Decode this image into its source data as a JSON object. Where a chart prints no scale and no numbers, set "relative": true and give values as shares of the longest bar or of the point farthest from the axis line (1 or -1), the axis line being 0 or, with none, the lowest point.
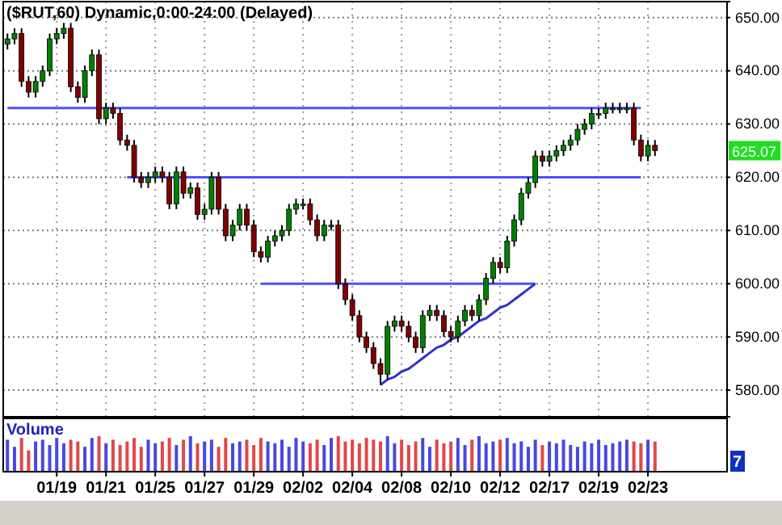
{
  "chart_data": [
    {
      "type": "candlestick",
      "title": "($RUT,60) Dynamic,0:00-24:00 (Delayed)",
      "categories": [
        null,
        null,
        null,
        null,
        null,
        null,
        null,
        null,
        null,
        null,
        null,
        null,
        null,
        null,
        null,
        null,
        null,
        null,
        null,
        null,
        null,
        null,
        null,
        null,
        null,
        null,
        null,
        null,
        null,
        null,
        null,
        null,
        null,
        null,
        null,
        null,
        null,
        null,
        null,
        null,
        null,
        null,
        null,
        null,
        null,
        null,
        null,
        null,
        null,
        null,
        null,
        null,
        null,
        null,
        null,
        null,
        null,
        null,
        null,
        null,
        null,
        null,
        null,
        null,
        null,
        null,
        null,
        null,
        null,
        null,
        null,
        null,
        null,
        null,
        null,
        null,
        null,
        null,
        null,
        null,
        null,
        null,
        null,
        null,
        null,
        null,
        null,
        null,
        null,
        null,
        null,
        null,
        null
      ],
      "ohlc": [
        [
          645,
          647,
          644,
          646
        ],
        [
          646,
          648,
          645,
          647
        ],
        [
          647,
          648,
          637,
          638
        ],
        [
          638,
          639,
          635,
          636
        ],
        [
          636,
          639,
          635,
          638
        ],
        [
          638,
          641,
          637,
          640
        ],
        [
          640,
          647,
          639,
          646
        ],
        [
          646,
          648,
          645,
          647
        ],
        [
          647,
          649,
          646,
          648
        ],
        [
          648,
          649,
          636,
          637
        ],
        [
          637,
          638,
          634,
          635
        ],
        [
          635,
          641,
          634,
          640
        ],
        [
          640,
          644,
          639,
          643
        ],
        [
          643,
          644,
          630,
          631
        ],
        [
          631,
          634,
          630,
          633
        ],
        [
          633,
          634,
          631,
          632
        ],
        [
          632,
          633,
          626,
          627
        ],
        [
          627,
          628,
          625,
          626
        ],
        [
          626,
          627,
          619,
          620
        ],
        [
          620,
          621,
          618,
          619
        ],
        [
          619,
          621,
          618,
          620
        ],
        [
          620,
          622,
          619,
          621
        ],
        [
          621,
          622,
          619,
          620
        ],
        [
          620,
          621,
          614,
          615
        ],
        [
          615,
          622,
          614,
          621
        ],
        [
          621,
          622,
          616,
          617
        ],
        [
          617,
          619,
          616,
          618
        ],
        [
          618,
          619,
          612,
          613
        ],
        [
          613,
          615,
          612,
          614
        ],
        [
          614,
          621,
          613,
          620
        ],
        [
          620,
          621,
          613,
          614
        ],
        [
          614,
          615,
          608,
          609
        ],
        [
          609,
          612,
          608,
          611
        ],
        [
          611,
          615,
          610,
          614
        ],
        [
          614,
          615,
          610,
          611
        ],
        [
          611,
          612,
          605,
          606
        ],
        [
          606,
          607,
          604,
          605
        ],
        [
          605,
          609,
          604,
          608
        ],
        [
          608,
          610,
          607,
          609
        ],
        [
          609,
          611,
          608,
          610
        ],
        [
          610,
          615,
          609,
          614
        ],
        [
          614,
          616,
          613,
          615
        ],
        [
          615,
          616,
          614,
          615
        ],
        [
          615,
          616,
          611,
          612
        ],
        [
          612,
          613,
          608,
          609
        ],
        [
          609,
          612,
          608,
          611
        ],
        [
          611,
          612,
          610,
          611
        ],
        [
          611,
          612,
          599,
          600
        ],
        [
          600,
          601,
          596,
          597
        ],
        [
          597,
          598,
          593,
          594
        ],
        [
          594,
          595,
          589,
          590
        ],
        [
          590,
          591,
          587,
          588
        ],
        [
          588,
          589,
          584,
          585
        ],
        [
          585,
          586,
          581,
          583
        ],
        [
          583,
          593,
          582,
          592
        ],
        [
          592,
          594,
          591,
          593
        ],
        [
          593,
          594,
          591,
          592
        ],
        [
          592,
          593,
          589,
          590
        ],
        [
          590,
          591,
          587,
          588
        ],
        [
          588,
          595,
          587,
          594
        ],
        [
          594,
          596,
          593,
          595
        ],
        [
          595,
          596,
          593,
          594
        ],
        [
          594,
          595,
          590,
          591
        ],
        [
          591,
          592,
          589,
          590
        ],
        [
          590,
          594,
          589,
          593
        ],
        [
          593,
          596,
          592,
          595
        ],
        [
          595,
          596,
          593,
          594
        ],
        [
          594,
          598,
          593,
          597
        ],
        [
          597,
          602,
          596,
          601
        ],
        [
          601,
          605,
          600,
          604
        ],
        [
          604,
          605,
          602,
          603
        ],
        [
          603,
          609,
          602,
          608
        ],
        [
          608,
          613,
          607,
          612
        ],
        [
          612,
          618,
          611,
          617
        ],
        [
          617,
          620,
          616,
          619
        ],
        [
          619,
          625,
          618,
          624
        ],
        [
          624,
          625,
          622,
          623
        ],
        [
          623,
          625,
          622,
          624
        ],
        [
          624,
          626,
          623,
          625
        ],
        [
          625,
          627,
          624,
          626
        ],
        [
          626,
          628,
          625,
          627
        ],
        [
          627,
          630,
          626,
          629
        ],
        [
          629,
          631,
          628,
          630
        ],
        [
          630,
          633,
          629,
          632
        ],
        [
          632,
          633,
          631,
          632
        ],
        [
          632,
          634,
          631,
          633
        ],
        [
          633,
          634,
          632,
          633
        ],
        [
          633,
          634,
          632,
          633
        ],
        [
          633,
          634,
          632,
          633
        ],
        [
          633,
          634,
          626,
          627
        ],
        [
          627,
          628,
          623,
          624
        ],
        [
          624,
          627,
          623,
          626
        ],
        [
          626,
          627,
          624,
          625
        ]
      ],
      "colors": [
        "#008000",
        "#008000",
        "#800000",
        "#800000",
        "#008000",
        "#008000",
        "#008000",
        "#008000",
        "#008000",
        "#800000",
        "#800000",
        "#008000",
        "#008000",
        "#800000",
        "#008000",
        "#800000",
        "#800000",
        "#800000",
        "#800000",
        "#800000",
        "#008000",
        "#008000",
        "#800000",
        "#800000",
        "#008000",
        "#800000",
        "#008000",
        "#800000",
        "#008000",
        "#008000",
        "#800000",
        "#800000",
        "#008000",
        "#008000",
        "#800000",
        "#800000",
        "#800000",
        "#008000",
        "#008000",
        "#008000",
        "#008000",
        "#008000",
        "#008000",
        "#800000",
        "#800000",
        "#008000",
        "#008000",
        "#800000",
        "#800000",
        "#800000",
        "#800000",
        "#800000",
        "#800000",
        "#800000",
        "#008000",
        "#008000",
        "#800000",
        "#800000",
        "#800000",
        "#008000",
        "#008000",
        "#800000",
        "#800000",
        "#800000",
        "#008000",
        "#008000",
        "#800000",
        "#008000",
        "#008000",
        "#008000",
        "#800000",
        "#008000",
        "#008000",
        "#008000",
        "#008000",
        "#008000",
        "#800000",
        "#008000",
        "#008000",
        "#008000",
        "#008000",
        "#008000",
        "#008000",
        "#008000",
        "#008000",
        "#008000",
        "#008000",
        "#008000",
        "#008000",
        "#800000",
        "#800000",
        "#008000",
        "#800000"
      ],
      "series": [
        {
          "type": "line",
          "color": "#5050ff",
          "values": [
            633,
            633,
            633,
            633,
            633,
            633,
            633,
            633,
            633,
            633,
            633,
            633,
            633,
            633,
            633,
            633,
            633,
            633,
            633,
            633,
            633,
            633,
            633,
            633,
            633,
            633,
            633,
            633,
            633,
            633,
            633,
            633,
            633,
            633,
            633,
            633,
            633,
            633,
            633,
            633,
            633,
            633,
            633,
            633,
            633,
            633,
            633,
            633,
            633,
            633,
            633,
            633,
            633,
            633,
            633,
            633,
            633,
            633,
            633,
            633,
            633,
            633,
            633,
            633,
            633,
            633,
            633,
            633,
            633,
            633,
            633,
            633,
            633,
            633,
            633,
            633,
            633,
            633,
            633,
            633,
            633,
            633,
            633,
            633,
            633,
            633,
            633,
            633,
            633,
            633,
            633,
            null,
            null
          ]
        },
        {
          "type": "line",
          "color": "#5050ff",
          "values": [
            null,
            null,
            null,
            null,
            null,
            null,
            null,
            null,
            null,
            null,
            null,
            null,
            null,
            null,
            null,
            null,
            null,
            620,
            620,
            620,
            620,
            620,
            620,
            620,
            620,
            620,
            620,
            620,
            620,
            620,
            620,
            620,
            620,
            620,
            620,
            620,
            620,
            620,
            620,
            620,
            620,
            620,
            620,
            620,
            620,
            620,
            620,
            620,
            620,
            620,
            620,
            620,
            620,
            620,
            620,
            620,
            620,
            620,
            620,
            620,
            620,
            620,
            620,
            620,
            620,
            620,
            620,
            620,
            620,
            620,
            620,
            620,
            620,
            620,
            620,
            620,
            620,
            620,
            620,
            620,
            620,
            620,
            620,
            620,
            620,
            620,
            620,
            620,
            620,
            620,
            620,
            null,
            null
          ]
        },
        {
          "type": "line",
          "color": "#5050ff",
          "values": [
            null,
            null,
            null,
            null,
            null,
            null,
            null,
            null,
            null,
            null,
            null,
            null,
            null,
            null,
            null,
            null,
            null,
            null,
            null,
            null,
            null,
            null,
            null,
            null,
            null,
            null,
            null,
            null,
            null,
            null,
            null,
            null,
            null,
            null,
            null,
            null,
            600,
            600,
            600,
            600,
            600,
            600,
            600,
            600,
            600,
            600,
            600,
            600,
            600,
            600,
            600,
            600,
            600,
            600,
            600,
            600,
            600,
            600,
            600,
            600,
            600,
            600,
            600,
            600,
            600,
            600,
            600,
            600,
            600,
            600,
            600,
            600,
            600,
            600,
            600,
            600,
            null,
            null,
            null,
            null,
            null,
            null,
            null,
            null,
            null,
            null,
            null,
            null,
            null,
            null,
            null,
            null,
            null
          ]
        },
        {
          "type": "line",
          "color": "#3030d0",
          "values": [
            null,
            null,
            null,
            null,
            null,
            null,
            null,
            null,
            null,
            null,
            null,
            null,
            null,
            null,
            null,
            null,
            null,
            null,
            null,
            null,
            null,
            null,
            null,
            null,
            null,
            null,
            null,
            null,
            null,
            null,
            null,
            null,
            null,
            null,
            null,
            null,
            null,
            null,
            null,
            null,
            null,
            null,
            null,
            null,
            null,
            null,
            null,
            null,
            null,
            null,
            null,
            null,
            null,
            581,
            582,
            582.5,
            583.5,
            584,
            585,
            586,
            587,
            588,
            588.5,
            589.5,
            590,
            591,
            592,
            593,
            593.5,
            594.5,
            595.5,
            596,
            597,
            598,
            599,
            600,
            null,
            null,
            null,
            null,
            null,
            null,
            null,
            null,
            null,
            null,
            null,
            null,
            null,
            null,
            null,
            null,
            null
          ]
        }
      ],
      "ylim": [
        575,
        653
      ],
      "yticks": [
        {
          "value": 580,
          "label": "580.00"
        },
        {
          "value": 590,
          "label": "590.00"
        },
        {
          "value": 600,
          "label": "600.00"
        },
        {
          "value": 610,
          "label": "610.00"
        },
        {
          "value": 620,
          "label": "620.00"
        },
        {
          "value": 630,
          "label": "630.00"
        },
        {
          "value": 640,
          "label": "640.00"
        },
        {
          "value": 650,
          "label": "650.00"
        }
      ],
      "grid": true,
      "tick_labels": "y",
      "annotations": [
        "625.07"
      ]
    },
    {
      "type": "bar",
      "title": "Volume",
      "relative": true,
      "categories": [
        null,
        null,
        null,
        null,
        null,
        null,
        null,
        "01/19",
        null,
        null,
        null,
        null,
        null,
        null,
        "01/21",
        null,
        null,
        null,
        null,
        null,
        null,
        "01/25",
        null,
        null,
        null,
        null,
        null,
        null,
        "01/27",
        null,
        null,
        null,
        null,
        null,
        null,
        "01/29",
        null,
        null,
        null,
        null,
        null,
        null,
        "02/02",
        null,
        null,
        null,
        null,
        null,
        null,
        "02/04",
        null,
        null,
        null,
        null,
        null,
        null,
        "02/08",
        null,
        null,
        null,
        null,
        null,
        null,
        "02/10",
        null,
        null,
        null,
        null,
        null,
        null,
        "02/12",
        null,
        null,
        null,
        null,
        null,
        null,
        "02/17",
        null,
        null,
        null,
        null,
        null,
        null,
        "02/19",
        null,
        null,
        null,
        null,
        null,
        null,
        "02/23",
        null
      ],
      "values": [
        0.9,
        0.7,
        0.95,
        0.6,
        0.85,
        0.9,
        0.75,
        0.95,
        0.8,
        0.9,
        0.85,
        0.7,
        0.95,
        1,
        0.8,
        0.9,
        0.75,
        0.85,
        0.95,
        0.7,
        0.9,
        0.8,
        0.85,
        0.95,
        0.75,
        0.9,
        1,
        0.8,
        0.85,
        0.9,
        0.7,
        0.95,
        0.8,
        0.85,
        0.9,
        0.75,
        0.95,
        0.85,
        0.8,
        0.9,
        0.7,
        0.95,
        0.85,
        0.8,
        0.9,
        0.75,
        0.95,
        1,
        0.85,
        0.9,
        0.8,
        0.95,
        0.9,
        0.85,
        1,
        0.8,
        0.9,
        0.75,
        0.85,
        0.95,
        0.7,
        0.9,
        0.8,
        0.85,
        0.95,
        0.75,
        0.9,
        1,
        0.8,
        0.85,
        0.9,
        0.95,
        0.8,
        0.85,
        0.7,
        0.9,
        0.75,
        0.85,
        0.8,
        0.9,
        0.75,
        0.7,
        0.85,
        0.8,
        0.9,
        0.75,
        0.8,
        0.85,
        0.9,
        0.85,
        0.8,
        0.9,
        0.85
      ],
      "colors": [
        "#4848e0",
        "#4848e0",
        "#e04848",
        "#e04848",
        "#4848e0",
        "#4848e0",
        "#4848e0",
        "#4848e0",
        "#4848e0",
        "#e04848",
        "#e04848",
        "#4848e0",
        "#4848e0",
        "#e04848",
        "#4848e0",
        "#e04848",
        "#e04848",
        "#e04848",
        "#e04848",
        "#e04848",
        "#4848e0",
        "#4848e0",
        "#e04848",
        "#e04848",
        "#4848e0",
        "#e04848",
        "#4848e0",
        "#e04848",
        "#4848e0",
        "#4848e0",
        "#e04848",
        "#e04848",
        "#4848e0",
        "#4848e0",
        "#e04848",
        "#e04848",
        "#e04848",
        "#4848e0",
        "#4848e0",
        "#4848e0",
        "#4848e0",
        "#4848e0",
        "#4848e0",
        "#e04848",
        "#e04848",
        "#4848e0",
        "#4848e0",
        "#e04848",
        "#e04848",
        "#e04848",
        "#e04848",
        "#e04848",
        "#e04848",
        "#e04848",
        "#4848e0",
        "#4848e0",
        "#e04848",
        "#e04848",
        "#e04848",
        "#4848e0",
        "#4848e0",
        "#e04848",
        "#e04848",
        "#e04848",
        "#4848e0",
        "#4848e0",
        "#e04848",
        "#4848e0",
        "#4848e0",
        "#4848e0",
        "#e04848",
        "#4848e0",
        "#4848e0",
        "#4848e0",
        "#4848e0",
        "#4848e0",
        "#e04848",
        "#4848e0",
        "#4848e0",
        "#4848e0",
        "#4848e0",
        "#4848e0",
        "#4848e0",
        "#4848e0",
        "#4848e0",
        "#4848e0",
        "#4848e0",
        "#4848e0",
        "#4848e0",
        "#e04848",
        "#e04848",
        "#4848e0",
        "#e04848"
      ],
      "tick_labels": "x",
      "annotations": [
        "7"
      ]
    }
  ]
}
